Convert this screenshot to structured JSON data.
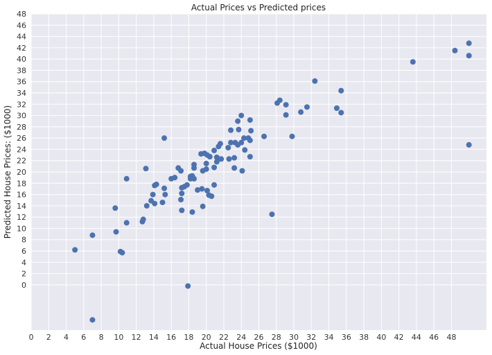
{
  "chart_data": {
    "type": "scatter",
    "title": "Actual Prices vs Predicted prices",
    "xlabel": "Actual House Prices ($1000)",
    "ylabel": "Predicted House Prices: ($1000)",
    "xlim": [
      0,
      52
    ],
    "ylim": [
      -8,
      48
    ],
    "xticks": [
      0,
      2,
      4,
      6,
      8,
      10,
      12,
      14,
      16,
      18,
      20,
      22,
      24,
      26,
      28,
      30,
      32,
      34,
      36,
      38,
      40,
      42,
      44,
      46,
      48
    ],
    "yticks": [
      0,
      2,
      4,
      6,
      8,
      10,
      12,
      14,
      16,
      18,
      20,
      22,
      24,
      26,
      28,
      30,
      32,
      34,
      36,
      38,
      40,
      42,
      44,
      46,
      48
    ],
    "grid": true,
    "colors": {
      "background": "#e8e8f0",
      "grid": "#ffffff",
      "point": "#4c72b0"
    },
    "points": [
      [
        50.0,
        42.8
      ],
      [
        48.4,
        41.5
      ],
      [
        50.0,
        40.6
      ],
      [
        43.6,
        39.5
      ],
      [
        50.0,
        24.8
      ],
      [
        32.4,
        36.1
      ],
      [
        35.4,
        34.4
      ],
      [
        28.4,
        32.7
      ],
      [
        28.1,
        32.2
      ],
      [
        29.1,
        31.9
      ],
      [
        31.5,
        31.5
      ],
      [
        30.8,
        30.6
      ],
      [
        34.9,
        31.3
      ],
      [
        35.4,
        30.5
      ],
      [
        29.1,
        30.1
      ],
      [
        29.8,
        26.3
      ],
      [
        26.6,
        26.3
      ],
      [
        24.0,
        30.0
      ],
      [
        25.0,
        29.2
      ],
      [
        23.6,
        29.0
      ],
      [
        22.8,
        27.4
      ],
      [
        23.7,
        27.5
      ],
      [
        25.1,
        27.3
      ],
      [
        24.3,
        26.0
      ],
      [
        24.8,
        26.0
      ],
      [
        25.0,
        25.6
      ],
      [
        23.3,
        25.2
      ],
      [
        22.8,
        25.2
      ],
      [
        24.0,
        25.2
      ],
      [
        23.6,
        24.8
      ],
      [
        22.5,
        24.3
      ],
      [
        24.4,
        23.9
      ],
      [
        21.6,
        25.0
      ],
      [
        21.4,
        24.5
      ],
      [
        20.9,
        23.8
      ],
      [
        19.4,
        23.2
      ],
      [
        19.8,
        23.3
      ],
      [
        20.1,
        23.0
      ],
      [
        20.4,
        22.7
      ],
      [
        21.2,
        22.6
      ],
      [
        21.7,
        22.3
      ],
      [
        22.6,
        22.3
      ],
      [
        23.2,
        22.5
      ],
      [
        25.0,
        22.7
      ],
      [
        21.2,
        21.8
      ],
      [
        20.0,
        21.5
      ],
      [
        18.6,
        21.3
      ],
      [
        18.6,
        20.7
      ],
      [
        20.9,
        20.8
      ],
      [
        19.6,
        20.2
      ],
      [
        20.0,
        20.5
      ],
      [
        24.1,
        20.2
      ],
      [
        23.2,
        20.7
      ],
      [
        16.8,
        20.7
      ],
      [
        17.1,
        20.2
      ],
      [
        13.1,
        20.6
      ],
      [
        18.2,
        19.2
      ],
      [
        18.4,
        19.3
      ],
      [
        18.6,
        18.8
      ],
      [
        18.2,
        18.8
      ],
      [
        16.4,
        19.0
      ],
      [
        16.0,
        18.8
      ],
      [
        10.9,
        18.8
      ],
      [
        14.3,
        17.8
      ],
      [
        14.1,
        17.6
      ],
      [
        17.5,
        17.4
      ],
      [
        17.8,
        17.7
      ],
      [
        20.9,
        17.7
      ],
      [
        17.2,
        17.2
      ],
      [
        17.2,
        16.2
      ],
      [
        19.0,
        16.8
      ],
      [
        19.5,
        17.0
      ],
      [
        20.1,
        16.7
      ],
      [
        15.2,
        17.1
      ],
      [
        15.3,
        16.0
      ],
      [
        13.9,
        16.0
      ],
      [
        20.3,
        15.9
      ],
      [
        20.6,
        15.7
      ],
      [
        17.1,
        15.1
      ],
      [
        13.7,
        14.9
      ],
      [
        14.1,
        14.4
      ],
      [
        15.0,
        14.6
      ],
      [
        13.2,
        14.0
      ],
      [
        19.6,
        13.9
      ],
      [
        17.2,
        13.2
      ],
      [
        18.4,
        12.9
      ],
      [
        27.5,
        12.5
      ],
      [
        9.6,
        13.6
      ],
      [
        12.8,
        11.6
      ],
      [
        12.7,
        11.2
      ],
      [
        10.9,
        11.0
      ],
      [
        9.7,
        9.4
      ],
      [
        7.0,
        8.8
      ],
      [
        5.0,
        6.2
      ],
      [
        10.2,
        5.9
      ],
      [
        10.4,
        5.7
      ],
      [
        17.9,
        -0.2
      ],
      [
        7.0,
        -6.2
      ],
      [
        15.2,
        26.0
      ]
    ]
  }
}
